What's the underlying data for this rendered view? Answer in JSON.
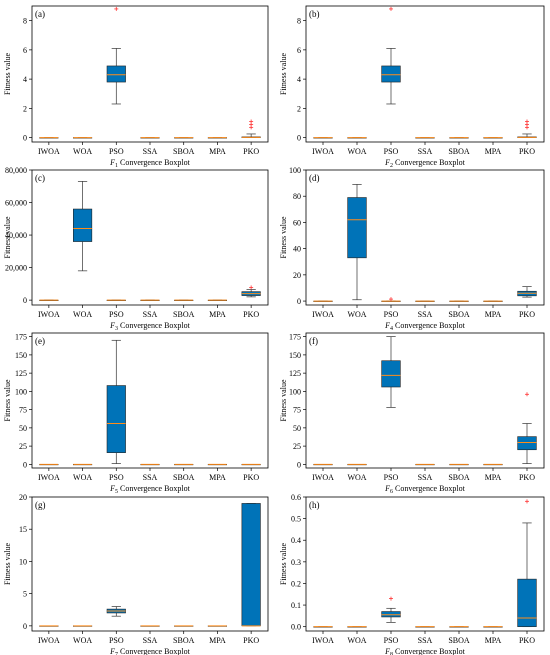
{
  "chart_data": [
    {
      "type": "box",
      "panel_label": "(a)",
      "title_prefix": "F",
      "title_sub": "1",
      "title_suffix": " Convergence Boxplot",
      "ylabel": "Fitness value",
      "ylim": [
        -0.3,
        9.0
      ],
      "yticks": [
        0,
        2,
        4,
        6,
        8
      ],
      "ytick_labels": [
        "0",
        "2",
        "4",
        "6",
        "8"
      ],
      "categories": [
        "IWOA",
        "WOA",
        "PSO",
        "SSA",
        "SBOA",
        "MPA",
        "PKO"
      ],
      "boxes": [
        {
          "min": 0,
          "q1": 0,
          "median": 0,
          "q3": 0,
          "max": 0,
          "outliers": []
        },
        {
          "min": 0,
          "q1": 0,
          "median": 0,
          "q3": 0,
          "max": 0,
          "outliers": []
        },
        {
          "min": 2.3,
          "q1": 3.8,
          "median": 4.3,
          "q3": 4.9,
          "max": 6.1,
          "outliers": [
            8.8
          ]
        },
        {
          "min": 0,
          "q1": 0,
          "median": 0,
          "q3": 0,
          "max": 0,
          "outliers": []
        },
        {
          "min": 0,
          "q1": 0,
          "median": 0,
          "q3": 0,
          "max": 0,
          "outliers": []
        },
        {
          "min": 0,
          "q1": 0,
          "median": 0,
          "q3": 0,
          "max": 0,
          "outliers": []
        },
        {
          "min": 0,
          "q1": 0,
          "median": 0.02,
          "q3": 0.05,
          "max": 0.25,
          "outliers": [
            0.7,
            0.9,
            1.1
          ]
        }
      ]
    },
    {
      "type": "box",
      "panel_label": "(b)",
      "title_prefix": "F",
      "title_sub": "2",
      "title_suffix": " Convergence Boxplot",
      "ylabel": "Fitness value",
      "ylim": [
        -0.3,
        9.0
      ],
      "yticks": [
        0,
        2,
        4,
        6,
        8
      ],
      "ytick_labels": [
        "0",
        "2",
        "4",
        "6",
        "8"
      ],
      "categories": [
        "IWOA",
        "WOA",
        "PSO",
        "SSA",
        "SBOA",
        "MPA",
        "PKO"
      ],
      "boxes": [
        {
          "min": 0,
          "q1": 0,
          "median": 0,
          "q3": 0,
          "max": 0,
          "outliers": []
        },
        {
          "min": 0,
          "q1": 0,
          "median": 0,
          "q3": 0,
          "max": 0,
          "outliers": []
        },
        {
          "min": 2.3,
          "q1": 3.8,
          "median": 4.3,
          "q3": 4.9,
          "max": 6.1,
          "outliers": [
            8.8
          ]
        },
        {
          "min": 0,
          "q1": 0,
          "median": 0,
          "q3": 0,
          "max": 0,
          "outliers": []
        },
        {
          "min": 0,
          "q1": 0,
          "median": 0,
          "q3": 0,
          "max": 0,
          "outliers": []
        },
        {
          "min": 0,
          "q1": 0,
          "median": 0,
          "q3": 0,
          "max": 0,
          "outliers": []
        },
        {
          "min": 0,
          "q1": 0,
          "median": 0.02,
          "q3": 0.05,
          "max": 0.25,
          "outliers": [
            0.7,
            0.9,
            1.1
          ]
        }
      ]
    },
    {
      "type": "box",
      "panel_label": "(c)",
      "title_prefix": "F",
      "title_sub": "3",
      "title_suffix": " Convergence Boxplot",
      "ylabel": "Fitness value",
      "ylim": [
        -3000,
        80000
      ],
      "yticks": [
        0,
        20000,
        40000,
        60000,
        80000
      ],
      "ytick_labels": [
        "0",
        "20,000",
        "40,000",
        "60,000",
        "80,000"
      ],
      "categories": [
        "IWOA",
        "WOA",
        "PSO",
        "SSA",
        "SBOA",
        "MPA",
        "PKO"
      ],
      "boxes": [
        {
          "min": 0,
          "q1": 0,
          "median": 0,
          "q3": 0,
          "max": 0,
          "outliers": []
        },
        {
          "min": 18000,
          "q1": 36000,
          "median": 44000,
          "q3": 56000,
          "max": 73000,
          "outliers": []
        },
        {
          "min": 0,
          "q1": 0,
          "median": 0,
          "q3": 0,
          "max": 0,
          "outliers": []
        },
        {
          "min": 0,
          "q1": 0,
          "median": 0,
          "q3": 0,
          "max": 0,
          "outliers": []
        },
        {
          "min": 0,
          "q1": 0,
          "median": 0,
          "q3": 0,
          "max": 0,
          "outliers": []
        },
        {
          "min": 0,
          "q1": 0,
          "median": 0,
          "q3": 0,
          "max": 0,
          "outliers": []
        },
        {
          "min": 2000,
          "q1": 2800,
          "median": 4000,
          "q3": 5200,
          "max": 6500,
          "outliers": [
            7800
          ]
        }
      ]
    },
    {
      "type": "box",
      "panel_label": "(d)",
      "title_prefix": "F",
      "title_sub": "4",
      "title_suffix": " Convergence Boxplot",
      "ylabel": "Fitness value",
      "ylim": [
        -3,
        100
      ],
      "yticks": [
        0,
        20,
        40,
        60,
        80,
        100
      ],
      "ytick_labels": [
        "0",
        "20",
        "40",
        "60",
        "80",
        "100"
      ],
      "categories": [
        "IWOA",
        "WOA",
        "PSO",
        "SSA",
        "SBOA",
        "MPA",
        "PKO"
      ],
      "boxes": [
        {
          "min": 0,
          "q1": 0,
          "median": 0,
          "q3": 0,
          "max": 0,
          "outliers": []
        },
        {
          "min": 1,
          "q1": 33,
          "median": 62,
          "q3": 79,
          "max": 89,
          "outliers": []
        },
        {
          "min": 0,
          "q1": 0,
          "median": 0,
          "q3": 0,
          "max": 0,
          "outliers": [
            1.5
          ]
        },
        {
          "min": 0,
          "q1": 0,
          "median": 0,
          "q3": 0,
          "max": 0,
          "outliers": []
        },
        {
          "min": 0,
          "q1": 0,
          "median": 0,
          "q3": 0,
          "max": 0,
          "outliers": []
        },
        {
          "min": 0,
          "q1": 0,
          "median": 0,
          "q3": 0,
          "max": 0,
          "outliers": []
        },
        {
          "min": 3,
          "q1": 4,
          "median": 6,
          "q3": 7.5,
          "max": 11,
          "outliers": []
        }
      ]
    },
    {
      "type": "box",
      "panel_label": "(e)",
      "title_prefix": "F",
      "title_sub": "5",
      "title_suffix": " Convergence Boxplot",
      "ylabel": "Fitness value",
      "ylim": [
        -5,
        180
      ],
      "yticks": [
        0,
        25,
        50,
        75,
        100,
        125,
        150,
        175
      ],
      "ytick_labels": [
        "0",
        "25",
        "50",
        "75",
        "100",
        "125",
        "150",
        "175"
      ],
      "categories": [
        "IWOA",
        "WOA",
        "PSO",
        "SSA",
        "SBOA",
        "MPA",
        "PKO"
      ],
      "boxes": [
        {
          "min": 0,
          "q1": 0,
          "median": 0,
          "q3": 0,
          "max": 0,
          "outliers": []
        },
        {
          "min": 0,
          "q1": 0,
          "median": 0,
          "q3": 0,
          "max": 0,
          "outliers": []
        },
        {
          "min": 1,
          "q1": 16,
          "median": 56,
          "q3": 108,
          "max": 170,
          "outliers": []
        },
        {
          "min": 0,
          "q1": 0,
          "median": 0,
          "q3": 0,
          "max": 0,
          "outliers": []
        },
        {
          "min": 0,
          "q1": 0,
          "median": 0,
          "q3": 0,
          "max": 0,
          "outliers": []
        },
        {
          "min": 0,
          "q1": 0,
          "median": 0,
          "q3": 0,
          "max": 0,
          "outliers": []
        },
        {
          "min": 0,
          "q1": 0,
          "median": 0,
          "q3": 0,
          "max": 0,
          "outliers": []
        }
      ]
    },
    {
      "type": "box",
      "panel_label": "(f)",
      "title_prefix": "F",
      "title_sub": "6",
      "title_suffix": " Convergence Boxplot",
      "ylabel": "Fitness value",
      "ylim": [
        -5,
        180
      ],
      "yticks": [
        0,
        25,
        50,
        75,
        100,
        125,
        150,
        175
      ],
      "ytick_labels": [
        "0",
        "25",
        "50",
        "75",
        "100",
        "125",
        "150",
        "175"
      ],
      "categories": [
        "IWOA",
        "WOA",
        "PSO",
        "SSA",
        "SBOA",
        "MPA",
        "PKO"
      ],
      "boxes": [
        {
          "min": 0,
          "q1": 0,
          "median": 0,
          "q3": 0,
          "max": 0,
          "outliers": []
        },
        {
          "min": 0,
          "q1": 0,
          "median": 0,
          "q3": 0,
          "max": 0,
          "outliers": []
        },
        {
          "min": 78,
          "q1": 106,
          "median": 122,
          "q3": 142,
          "max": 175,
          "outliers": []
        },
        {
          "min": 0,
          "q1": 0,
          "median": 0,
          "q3": 0,
          "max": 0,
          "outliers": []
        },
        {
          "min": 0,
          "q1": 0,
          "median": 0,
          "q3": 0,
          "max": 0,
          "outliers": []
        },
        {
          "min": 0,
          "q1": 0,
          "median": 0,
          "q3": 0,
          "max": 0,
          "outliers": []
        },
        {
          "min": 1,
          "q1": 20,
          "median": 30,
          "q3": 38,
          "max": 56,
          "outliers": [
            96
          ]
        }
      ]
    },
    {
      "type": "box",
      "panel_label": "(g)",
      "title_prefix": "F",
      "title_sub": "7",
      "title_suffix": " Convergence Boxplot",
      "ylabel": "Fitness value",
      "ylim": [
        -0.8,
        20
      ],
      "yticks": [
        0,
        5,
        10,
        15,
        20
      ],
      "ytick_labels": [
        "0",
        "5",
        "10",
        "15",
        "20"
      ],
      "categories": [
        "IWOA",
        "WOA",
        "PSO",
        "SSA",
        "SBOA",
        "MPA",
        "PKO"
      ],
      "boxes": [
        {
          "min": 0,
          "q1": 0,
          "median": 0,
          "q3": 0,
          "max": 0,
          "outliers": []
        },
        {
          "min": 0,
          "q1": 0,
          "median": 0,
          "q3": 0,
          "max": 0,
          "outliers": []
        },
        {
          "min": 1.5,
          "q1": 2.0,
          "median": 2.3,
          "q3": 2.6,
          "max": 3.0,
          "outliers": []
        },
        {
          "min": 0,
          "q1": 0,
          "median": 0,
          "q3": 0,
          "max": 0,
          "outliers": []
        },
        {
          "min": 0,
          "q1": 0,
          "median": 0,
          "q3": 0,
          "max": 0,
          "outliers": []
        },
        {
          "min": 0,
          "q1": 0,
          "median": 0,
          "q3": 0,
          "max": 0,
          "outliers": []
        },
        {
          "min": 0,
          "q1": 0,
          "median": 0,
          "q3": 19,
          "max": 19,
          "outliers": []
        }
      ]
    },
    {
      "type": "box",
      "panel_label": "(h)",
      "title_prefix": "F",
      "title_sub": "8",
      "title_suffix": " Convergence Boxplot",
      "ylabel": "Fitness value",
      "ylim": [
        -0.02,
        0.6
      ],
      "yticks": [
        0,
        0.1,
        0.2,
        0.3,
        0.4,
        0.5,
        0.6
      ],
      "ytick_labels": [
        "0.0",
        "0.1",
        "0.2",
        "0.3",
        "0.4",
        "0.5",
        "0.6"
      ],
      "categories": [
        "IWOA",
        "WOA",
        "PSO",
        "SSA",
        "SBOA",
        "MPA",
        "PKO"
      ],
      "boxes": [
        {
          "min": 0,
          "q1": 0,
          "median": 0,
          "q3": 0,
          "max": 0,
          "outliers": []
        },
        {
          "min": 0,
          "q1": 0,
          "median": 0,
          "q3": 0,
          "max": 0,
          "outliers": []
        },
        {
          "min": 0.02,
          "q1": 0.045,
          "median": 0.055,
          "q3": 0.07,
          "max": 0.085,
          "outliers": [
            0.13
          ]
        },
        {
          "min": 0,
          "q1": 0,
          "median": 0,
          "q3": 0,
          "max": 0,
          "outliers": []
        },
        {
          "min": 0,
          "q1": 0,
          "median": 0,
          "q3": 0,
          "max": 0,
          "outliers": []
        },
        {
          "min": 0,
          "q1": 0,
          "median": 0,
          "q3": 0,
          "max": 0,
          "outliers": []
        },
        {
          "min": 0,
          "q1": 0,
          "median": 0.04,
          "q3": 0.22,
          "max": 0.48,
          "outliers": [
            0.58
          ]
        }
      ]
    }
  ],
  "colors": {
    "box_fill": "#0073b8",
    "box_edge": "#222222",
    "median": "#ff8c1a",
    "whisker": "#333333",
    "outlier": "#ff3333"
  }
}
